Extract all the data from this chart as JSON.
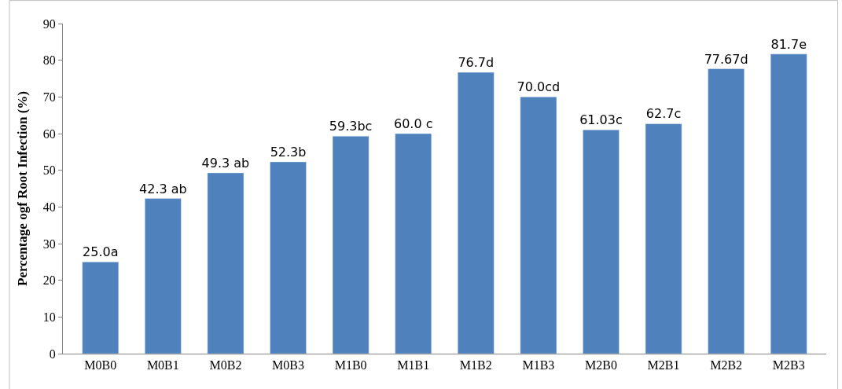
{
  "chart_data": {
    "type": "bar",
    "ylabel": "Percentage ogf Root Infection (%)",
    "categories": [
      "M0B0",
      "M0B1",
      "M0B2",
      "M0B3",
      "M1B0",
      "M1B1",
      "M1B2",
      "M1B3",
      "M2B0",
      "M2B1",
      "M2B2",
      "M2B3"
    ],
    "values": [
      25.0,
      42.3,
      49.3,
      52.3,
      59.3,
      60.0,
      76.7,
      70.0,
      61.03,
      62.7,
      77.67,
      81.7
    ],
    "value_labels": [
      "25.0a",
      "42.3 ab",
      "49.3 ab",
      "52.3b",
      "59.3bc",
      "60.0 c",
      "76.7d",
      "70.0cd",
      "61.03c",
      "62.7c",
      "77.67d",
      "81.7e"
    ],
    "color": "#4f81bd",
    "ylim": [
      0,
      90
    ],
    "yticks": [
      0,
      10,
      20,
      30,
      40,
      50,
      60,
      70,
      80,
      90
    ]
  }
}
